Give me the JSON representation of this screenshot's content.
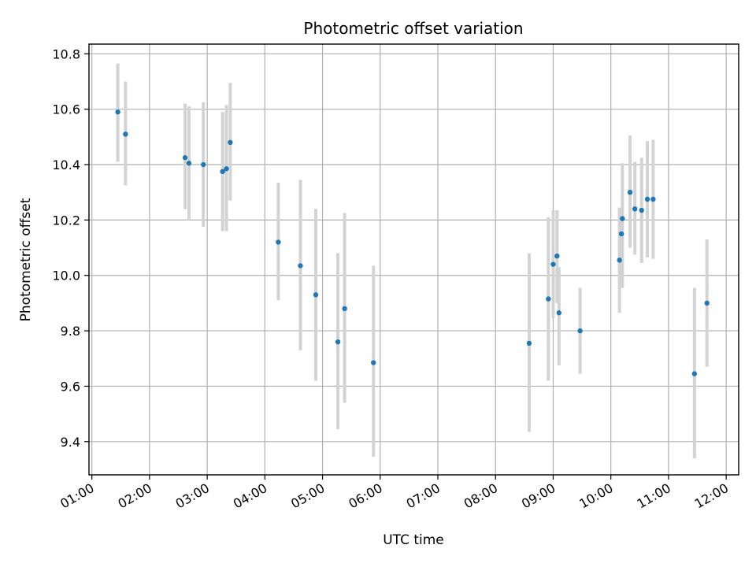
{
  "chart_data": {
    "type": "scatter",
    "title": "Photometric offset variation",
    "xlabel": "UTC time",
    "ylabel": "Photometric offset",
    "x_ticks": [
      "01:00",
      "02:00",
      "03:00",
      "04:00",
      "05:00",
      "06:00",
      "07:00",
      "08:00",
      "09:00",
      "10:00",
      "11:00",
      "12:00"
    ],
    "y_ticks": [
      "9.4",
      "9.6",
      "9.8",
      "10.0",
      "10.2",
      "10.4",
      "10.6",
      "10.8"
    ],
    "xlim": [
      "00:57",
      "12:13"
    ],
    "ylim": [
      9.28,
      10.835
    ],
    "grid": true,
    "colors": {
      "point": "#1f77b4",
      "error_bar": "#d3d3d3",
      "grid": "#b0b0b0"
    },
    "points": [
      {
        "x": "01:27",
        "y": 10.59,
        "ylow": 10.41,
        "yhigh": 10.765
      },
      {
        "x": "01:35",
        "y": 10.51,
        "ylow": 10.325,
        "yhigh": 10.7
      },
      {
        "x": "02:37",
        "y": 10.425,
        "ylow": 10.24,
        "yhigh": 10.62
      },
      {
        "x": "02:41",
        "y": 10.405,
        "ylow": 10.2,
        "yhigh": 10.61
      },
      {
        "x": "02:56",
        "y": 10.4,
        "ylow": 10.175,
        "yhigh": 10.625
      },
      {
        "x": "03:16",
        "y": 10.375,
        "ylow": 10.16,
        "yhigh": 10.59
      },
      {
        "x": "03:20",
        "y": 10.385,
        "ylow": 10.16,
        "yhigh": 10.615
      },
      {
        "x": "03:24",
        "y": 10.48,
        "ylow": 10.27,
        "yhigh": 10.695
      },
      {
        "x": "04:14",
        "y": 10.12,
        "ylow": 9.91,
        "yhigh": 10.335
      },
      {
        "x": "04:37",
        "y": 10.035,
        "ylow": 9.73,
        "yhigh": 10.345
      },
      {
        "x": "04:53",
        "y": 9.93,
        "ylow": 9.62,
        "yhigh": 10.24
      },
      {
        "x": "05:16",
        "y": 9.76,
        "ylow": 9.445,
        "yhigh": 10.08
      },
      {
        "x": "05:23",
        "y": 9.88,
        "ylow": 9.54,
        "yhigh": 10.225
      },
      {
        "x": "05:53",
        "y": 9.685,
        "ylow": 9.345,
        "yhigh": 10.035
      },
      {
        "x": "08:35",
        "y": 9.755,
        "ylow": 9.435,
        "yhigh": 10.08
      },
      {
        "x": "08:55",
        "y": 9.915,
        "ylow": 9.62,
        "yhigh": 10.21
      },
      {
        "x": "09:00",
        "y": 10.04,
        "ylow": 9.845,
        "yhigh": 10.235
      },
      {
        "x": "09:04",
        "y": 10.07,
        "ylow": 9.9,
        "yhigh": 10.235
      },
      {
        "x": "09:06",
        "y": 9.865,
        "ylow": 9.675,
        "yhigh": 10.03
      },
      {
        "x": "09:28",
        "y": 9.8,
        "ylow": 9.645,
        "yhigh": 9.955
      },
      {
        "x": "10:09",
        "y": 10.055,
        "ylow": 9.865,
        "yhigh": 10.245
      },
      {
        "x": "10:11",
        "y": 10.15,
        "ylow": 9.985,
        "yhigh": 10.245
      },
      {
        "x": "10:12",
        "y": 10.205,
        "ylow": 9.955,
        "yhigh": 10.405
      },
      {
        "x": "10:20",
        "y": 10.3,
        "ylow": 10.1,
        "yhigh": 10.505
      },
      {
        "x": "10:25",
        "y": 10.24,
        "ylow": 10.075,
        "yhigh": 10.41
      },
      {
        "x": "10:32",
        "y": 10.235,
        "ylow": 10.045,
        "yhigh": 10.425
      },
      {
        "x": "10:38",
        "y": 10.275,
        "ylow": 10.065,
        "yhigh": 10.485
      },
      {
        "x": "10:44",
        "y": 10.275,
        "ylow": 10.06,
        "yhigh": 10.49
      },
      {
        "x": "11:27",
        "y": 9.645,
        "ylow": 9.34,
        "yhigh": 9.955
      },
      {
        "x": "11:40",
        "y": 9.9,
        "ylow": 9.67,
        "yhigh": 10.13
      }
    ]
  }
}
